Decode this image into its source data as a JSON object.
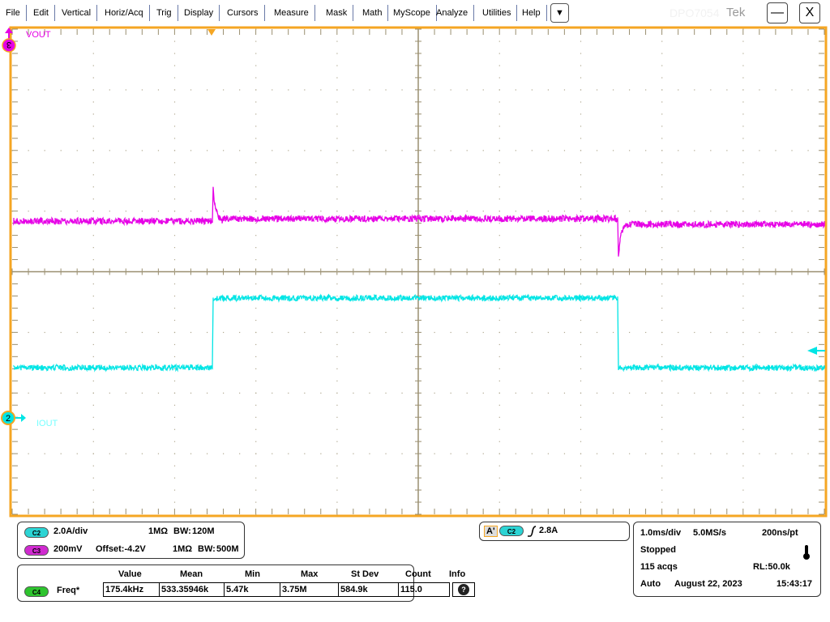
{
  "menu": [
    "File",
    "Edit",
    "Vertical",
    "Horiz/Acq",
    "Trig",
    "Display",
    "Cursors",
    "Measure",
    "Mask",
    "Math",
    "MyScope",
    "Analyze",
    "Utilities",
    "Help"
  ],
  "more_icon": "dropdown-arrow-icon",
  "more_glyph": "▼",
  "model": "DPO7054",
  "brand": "Tek",
  "minimize": "—",
  "close": "X",
  "colors": {
    "ch2": "#00e5e5",
    "ch3": "#e600e6",
    "ch4": "#22cc22",
    "graticule_border": "#f5a623",
    "grid": "#9a8f70"
  },
  "waveform_labels": {
    "ch3": "VOUT",
    "ch2": "IOUT",
    "ch3_marker": "3",
    "ch2_marker": "2"
  },
  "channels": {
    "c2": {
      "tag": "C2",
      "scale": "2.0A/div",
      "impedance": "1MΩ",
      "bw": "120M"
    },
    "c3": {
      "tag": "C3",
      "scale": "200mV",
      "offset": "Offset:-4.2V",
      "impedance": "1MΩ",
      "bw": "500M"
    }
  },
  "bw_prefix": "BW:",
  "measure": {
    "headers": [
      "Value",
      "Mean",
      "Min",
      "Max",
      "St Dev",
      "Count",
      "Info"
    ],
    "tag": "C4",
    "name": "Freq*",
    "values": [
      "175.4kHz",
      "533.35946k",
      "5.47k",
      "3.75M",
      "584.9k",
      "115.0"
    ]
  },
  "trigger": {
    "mode": "A'",
    "source": "C2",
    "slope": "rising",
    "level": "2.8A"
  },
  "horizontal": {
    "scale": "1.0ms/div",
    "sample_rate": "5.0MS/s",
    "resolution": "200ns/pt",
    "state": "Stopped",
    "acqs": "115 acqs",
    "record_length": "RL:50.0k",
    "trigger_mode": "Auto",
    "date": "August 22, 2023",
    "time": "15:43:17"
  }
}
